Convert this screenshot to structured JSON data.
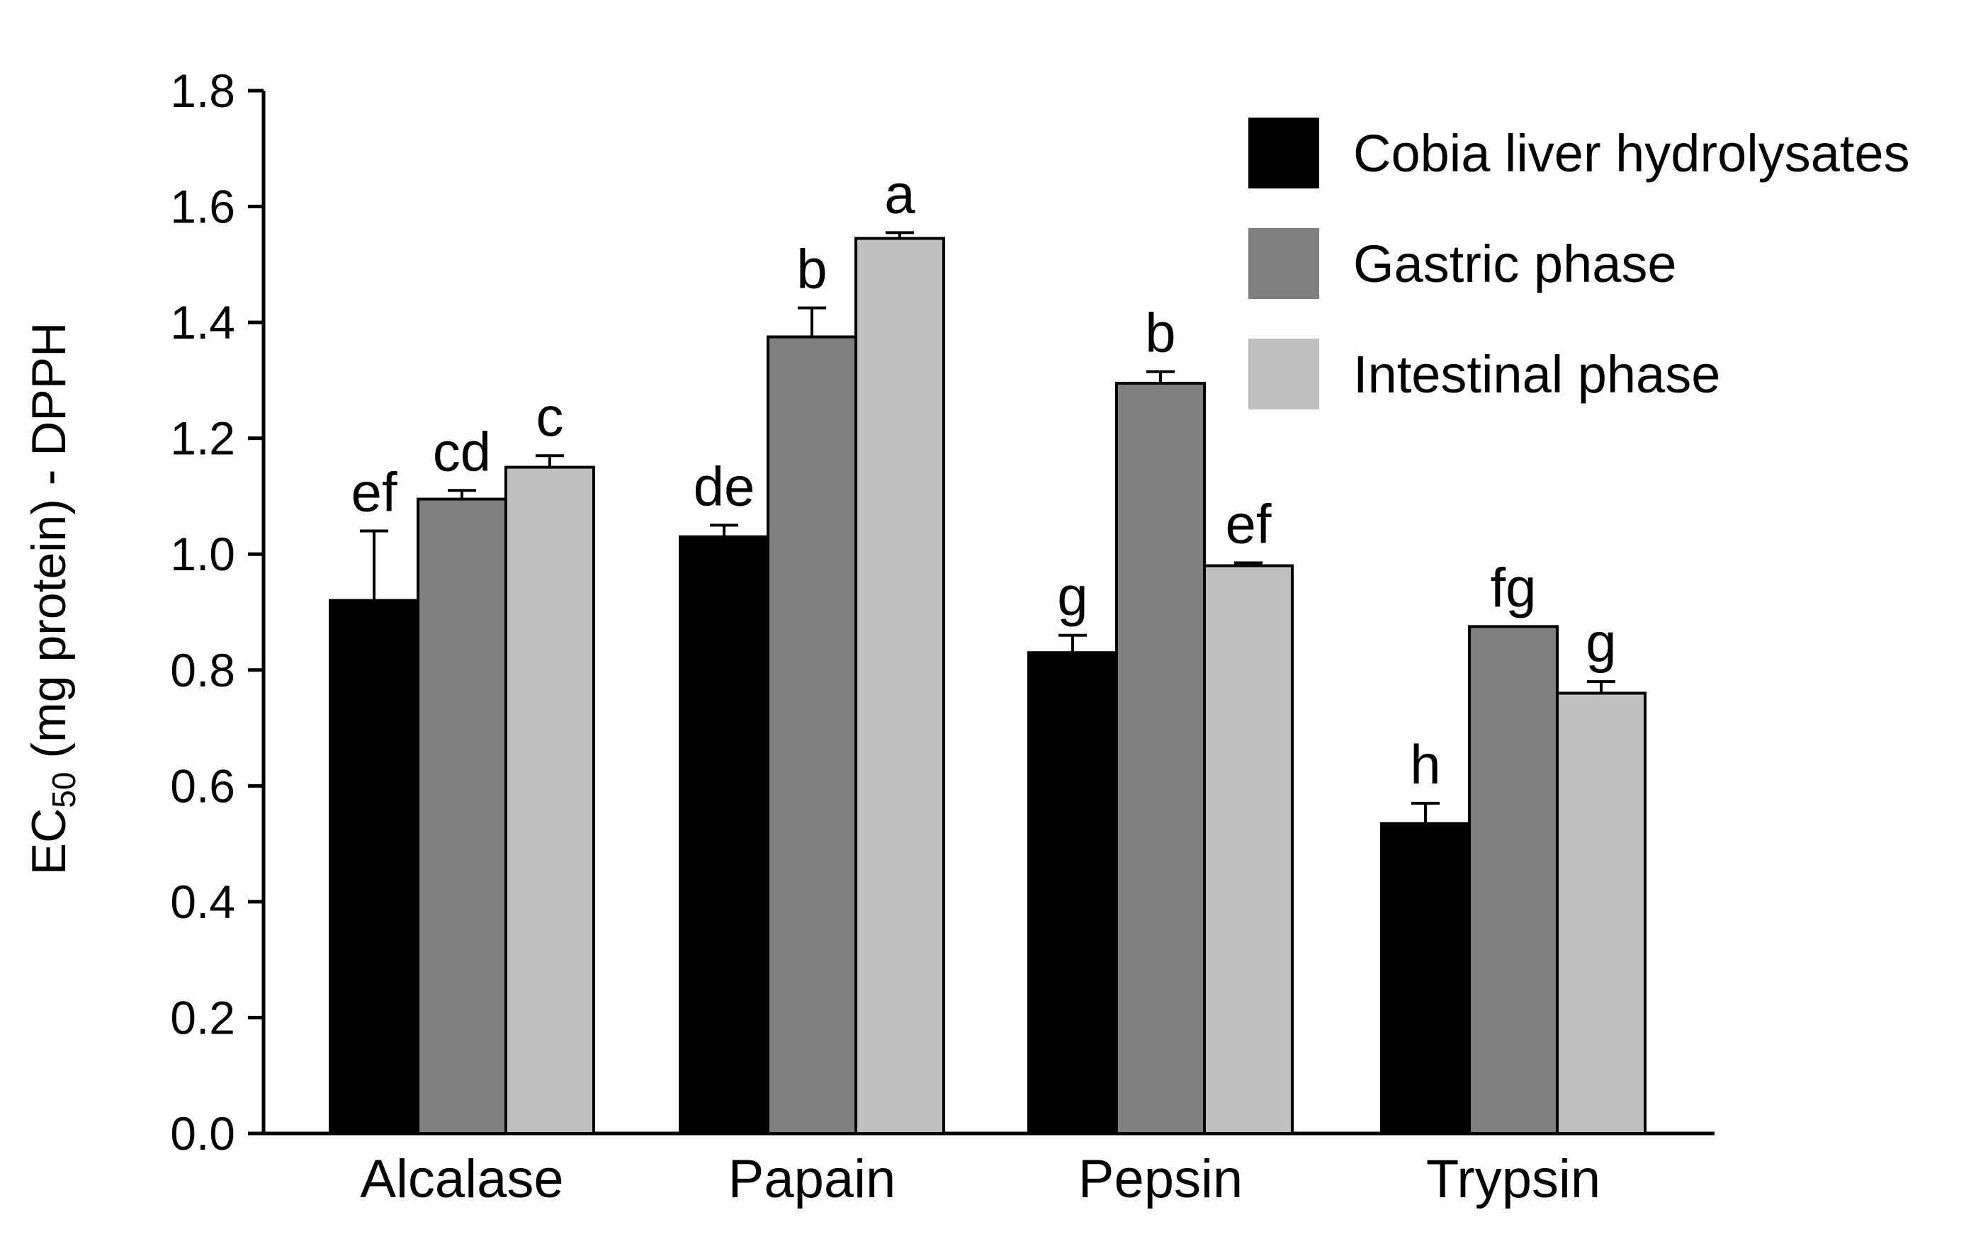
{
  "chart_data": {
    "type": "bar",
    "title": "",
    "xlabel": "",
    "ylabel": {
      "main": "EC",
      "sub": "50",
      "rest": " (mg protein) - DPPH"
    },
    "ylim": [
      0,
      1.8
    ],
    "yticks": [
      "0.0",
      "0.2",
      "0.4",
      "0.6",
      "0.8",
      "1.0",
      "1.2",
      "1.4",
      "1.6",
      "1.8"
    ],
    "categories": [
      "Alcalase",
      "Papain",
      "Pepsin",
      "Trypsin"
    ],
    "legend_position": "top-right",
    "series": [
      {
        "name": "Cobia liver hydrolysates",
        "color": "#000000",
        "values": [
          0.92,
          1.03,
          0.83,
          0.535
        ],
        "errors": [
          0.12,
          0.02,
          0.03,
          0.035
        ],
        "labels": [
          "ef",
          "de",
          "g",
          "h"
        ]
      },
      {
        "name": "Gastric phase",
        "color": "#808080",
        "values": [
          1.095,
          1.375,
          1.295,
          0.875
        ],
        "errors": [
          0.015,
          0.05,
          0.02,
          0.0
        ],
        "labels": [
          "cd",
          "b",
          "b",
          "fg"
        ]
      },
      {
        "name": "Intestinal phase",
        "color": "#c0c0c0",
        "values": [
          1.15,
          1.545,
          0.98,
          0.76
        ],
        "errors": [
          0.02,
          0.01,
          0.005,
          0.02
        ],
        "labels": [
          "c",
          "a",
          "ef",
          "g"
        ]
      }
    ]
  }
}
